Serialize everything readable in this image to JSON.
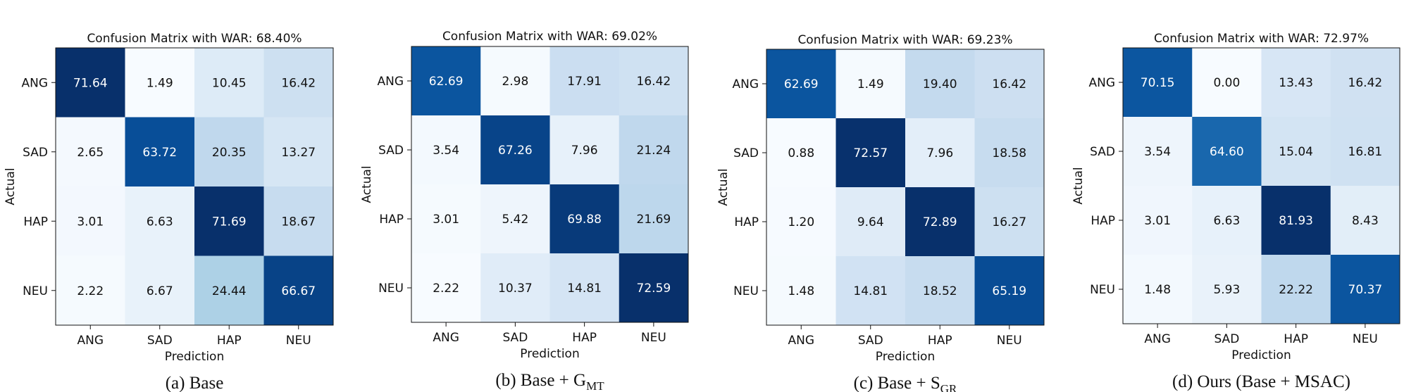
{
  "chart_data": [
    {
      "type": "heatmap",
      "title": "Confusion Matrix with WAR: 68.40%",
      "xlabel": "Prediction",
      "ylabel": "Actual",
      "x_categories": [
        "ANG",
        "SAD",
        "HAP",
        "NEU"
      ],
      "y_categories": [
        "ANG",
        "SAD",
        "HAP",
        "NEU"
      ],
      "values": [
        [
          71.64,
          1.49,
          10.45,
          16.42
        ],
        [
          2.65,
          63.72,
          20.35,
          13.27
        ],
        [
          3.01,
          6.63,
          71.69,
          18.67
        ],
        [
          2.22,
          6.67,
          24.44,
          66.67
        ]
      ],
      "caption": "(a) Base",
      "caption_sub": ""
    },
    {
      "type": "heatmap",
      "title": "Confusion Matrix with WAR: 69.02%",
      "xlabel": "Prediction",
      "ylabel": "Actual",
      "x_categories": [
        "ANG",
        "SAD",
        "HAP",
        "NEU"
      ],
      "y_categories": [
        "ANG",
        "SAD",
        "HAP",
        "NEU"
      ],
      "values": [
        [
          62.69,
          2.98,
          17.91,
          16.42
        ],
        [
          3.54,
          67.26,
          7.96,
          21.24
        ],
        [
          3.01,
          5.42,
          69.88,
          21.69
        ],
        [
          2.22,
          10.37,
          14.81,
          72.59
        ]
      ],
      "caption": "(b) Base + G",
      "caption_sub": "MT"
    },
    {
      "type": "heatmap",
      "title": "Confusion Matrix with WAR: 69.23%",
      "xlabel": "Prediction",
      "ylabel": "Actual",
      "x_categories": [
        "ANG",
        "SAD",
        "HAP",
        "NEU"
      ],
      "y_categories": [
        "ANG",
        "SAD",
        "HAP",
        "NEU"
      ],
      "values": [
        [
          62.69,
          1.49,
          19.4,
          16.42
        ],
        [
          0.88,
          72.57,
          7.96,
          18.58
        ],
        [
          1.2,
          9.64,
          72.89,
          16.27
        ],
        [
          1.48,
          14.81,
          18.52,
          65.19
        ]
      ],
      "caption": "(c) Base + S",
      "caption_sub": "GR"
    },
    {
      "type": "heatmap",
      "title": "Confusion Matrix with WAR: 72.97%",
      "xlabel": "Prediction",
      "ylabel": "Actual",
      "x_categories": [
        "ANG",
        "SAD",
        "HAP",
        "NEU"
      ],
      "y_categories": [
        "ANG",
        "SAD",
        "HAP",
        "NEU"
      ],
      "values": [
        [
          70.15,
          0.0,
          13.43,
          16.42
        ],
        [
          3.54,
          64.6,
          15.04,
          16.81
        ],
        [
          3.01,
          6.63,
          81.93,
          8.43
        ],
        [
          1.48,
          5.93,
          22.22,
          70.37
        ]
      ],
      "caption": "(d) Ours (Base + MSAC)",
      "caption_sub": ""
    }
  ]
}
